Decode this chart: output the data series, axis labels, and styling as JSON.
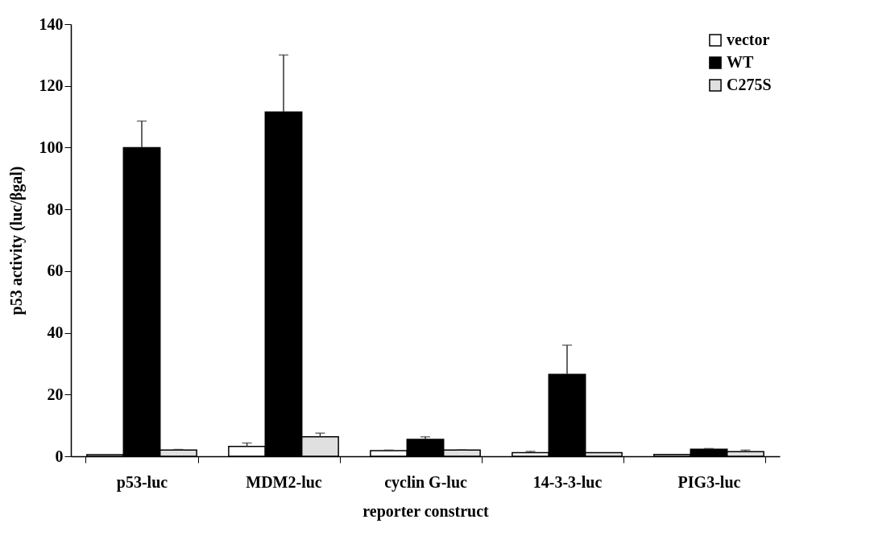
{
  "chart_data": {
    "type": "bar",
    "xlabel": "reporter construct",
    "ylabel": "p53 activity (luc/βgal)",
    "categories": [
      "p53-luc",
      "MDM2-luc",
      "cyclin G-luc",
      "14-3-3-luc",
      "PIG3-luc"
    ],
    "series": [
      {
        "name": "vector",
        "color": "#ffffff",
        "values": [
          0.5,
          3.2,
          1.8,
          1.2,
          0.6
        ],
        "errors": [
          null,
          [
            3.2,
            4.3
          ],
          [
            1.8,
            2.0
          ],
          [
            1.2,
            1.6
          ],
          null
        ]
      },
      {
        "name": "WT",
        "color": "#000000",
        "values": [
          100,
          111.5,
          5.5,
          26.5,
          2.3
        ],
        "errors": [
          [
            100,
            108.6
          ],
          [
            111.5,
            130
          ],
          [
            5.5,
            6.3
          ],
          [
            26.5,
            36
          ],
          [
            2.3,
            2.5
          ]
        ]
      },
      {
        "name": "C275S",
        "color": "#e0e0e0",
        "values": [
          2.0,
          6.3,
          2.0,
          1.2,
          1.5
        ],
        "errors": [
          [
            2.0,
            2.2
          ],
          [
            6.3,
            7.5
          ],
          [
            2.0,
            2.1
          ],
          null,
          [
            1.5,
            2.0
          ]
        ]
      }
    ],
    "ylim": [
      0,
      140
    ],
    "yticks": [
      0,
      20,
      40,
      60,
      80,
      100,
      120,
      140
    ],
    "grid": false,
    "legend": "top right"
  }
}
